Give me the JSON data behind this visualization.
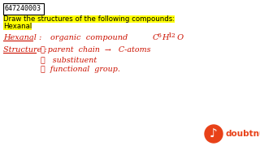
{
  "bg_color": "#ffffff",
  "id_text": "647240003",
  "title_line1": "Draw the structures of the following compounds:",
  "title_line2": "Hexanal",
  "title_color": "#333300",
  "title_highlight": "#ffff00",
  "red_color": "#cc1100",
  "doubtnut_red": "#e84118",
  "hexanal_label": "Hexanal :",
  "hexanal_desc": "organic  compound",
  "formula_C": "C",
  "formula_sub6": "6",
  "formula_H": "H",
  "formula_sub12": "12",
  "formula_O": " O",
  "structure_label": "Structure :",
  "step1_num": "①",
  "step1_text": "parent  chain  →   C-atoms",
  "step2_num": "②",
  "step2_text": "  substituent",
  "step3_num": "③",
  "step3_text": "  functional  group.",
  "doubtnut_text": "doubtnut"
}
